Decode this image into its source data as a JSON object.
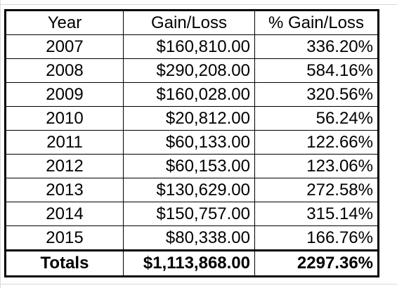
{
  "table": {
    "headers": [
      "Year",
      "Gain/Loss",
      "% Gain/Loss"
    ],
    "rows": [
      {
        "year": "2007",
        "gain": "$160,810.00",
        "pct": "336.20%"
      },
      {
        "year": "2008",
        "gain": "$290,208.00",
        "pct": "584.16%"
      },
      {
        "year": "2009",
        "gain": "$160,028.00",
        "pct": "320.56%"
      },
      {
        "year": "2010",
        "gain": "$20,812.00",
        "pct": "56.24%"
      },
      {
        "year": "2011",
        "gain": "$60,133.00",
        "pct": "122.66%"
      },
      {
        "year": "2012",
        "gain": "$60,153.00",
        "pct": "123.06%"
      },
      {
        "year": "2013",
        "gain": "$130,629.00",
        "pct": "272.58%"
      },
      {
        "year": "2014",
        "gain": "$150,757.00",
        "pct": "315.14%"
      },
      {
        "year": "2015",
        "gain": "$80,338.00",
        "pct": "166.76%"
      }
    ],
    "totals": {
      "label": "Totals",
      "gain": "$1,113,868.00",
      "pct": "2297.36%"
    }
  },
  "colors": {
    "gridline": "#d9d9d9",
    "border": "#000000",
    "background": "#ffffff"
  }
}
